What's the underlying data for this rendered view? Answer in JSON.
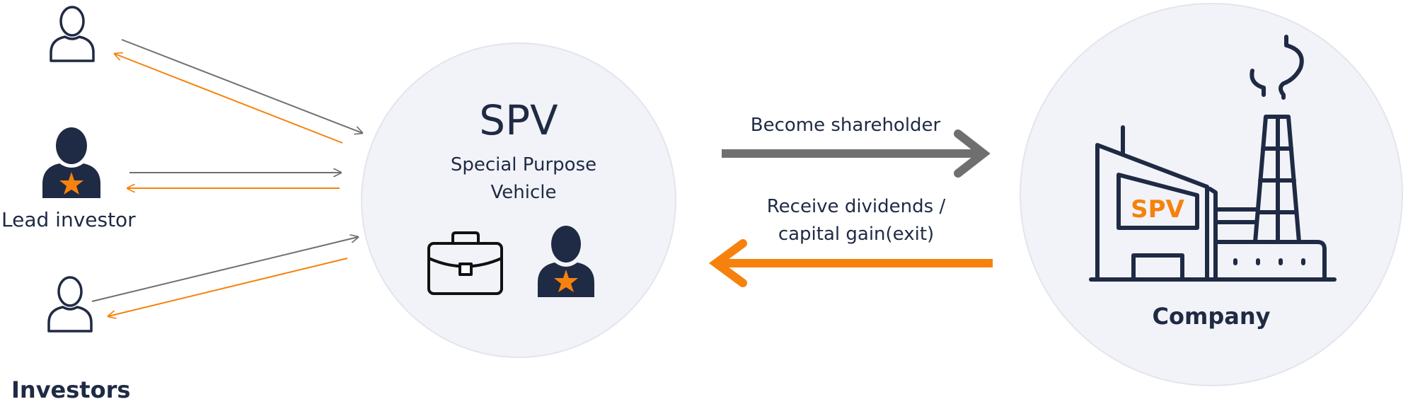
{
  "investors": {
    "group_label": "Investors",
    "lead_label": "Lead investor"
  },
  "spv": {
    "title": "SPV",
    "subtitle_line1": "Special Purpose",
    "subtitle_line2": "Vehicle"
  },
  "flows": {
    "to_company_label": "Become shareholder",
    "from_company_line1": "Receive dividends /",
    "from_company_line2": "capital gain(exit)"
  },
  "company": {
    "label": "Company",
    "sign_text": "SPV"
  },
  "colors": {
    "navy": "#1f2a44",
    "orange": "#f6820d",
    "gray_arrow": "#6f6f6f",
    "circle_fill": "#f2f3f8",
    "circle_stroke": "#e3e5ee"
  },
  "icons": [
    "person-outline-icon",
    "lead-investor-icon",
    "briefcase-icon",
    "factory-icon"
  ]
}
